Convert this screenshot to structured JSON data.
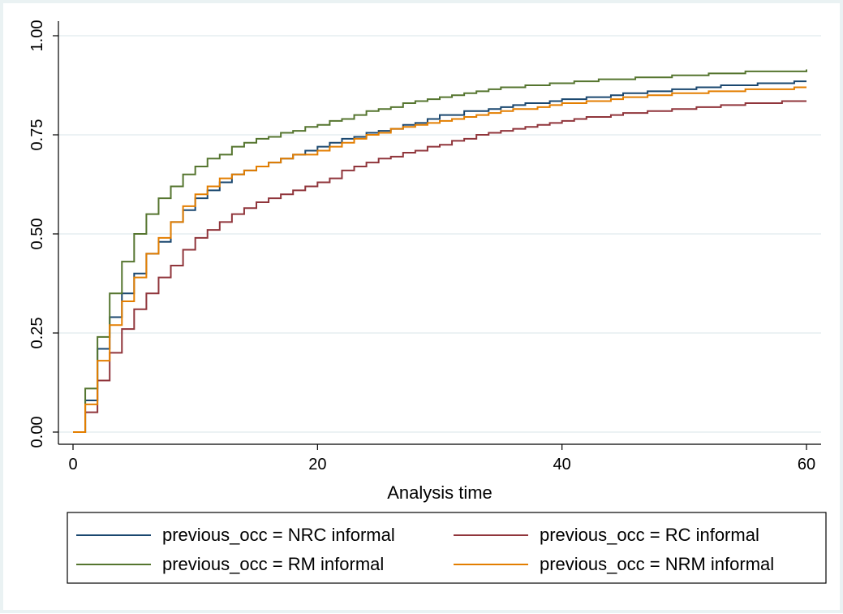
{
  "chart_data": {
    "type": "line",
    "title": "",
    "xlabel": "Analysis time",
    "ylabel": "",
    "xlim": [
      0,
      60
    ],
    "ylim": [
      0,
      1
    ],
    "xticks": [
      "0",
      "20",
      "40",
      "60"
    ],
    "yticks": [
      "0.00",
      "0.25",
      "0.50",
      "0.75",
      "1.00"
    ],
    "grid": true,
    "legend_position": "bottom",
    "series": [
      {
        "name": "previous_occ = NRC informal",
        "color": "#1a476f",
        "x": [
          0,
          1,
          2,
          3,
          4,
          5,
          6,
          7,
          8,
          9,
          10,
          11,
          12,
          13,
          14,
          15,
          16,
          17,
          18,
          19,
          20,
          21,
          22,
          23,
          24,
          25,
          26,
          27,
          28,
          29,
          30,
          31,
          32,
          33,
          34,
          35,
          36,
          37,
          38,
          39,
          40,
          41,
          42,
          43,
          44,
          45,
          46,
          47,
          48,
          49,
          50,
          51,
          52,
          53,
          54,
          55,
          56,
          57,
          58,
          59,
          60
        ],
        "y": [
          0.0,
          0.08,
          0.21,
          0.29,
          0.35,
          0.4,
          0.45,
          0.48,
          0.53,
          0.56,
          0.59,
          0.61,
          0.63,
          0.65,
          0.66,
          0.67,
          0.68,
          0.69,
          0.7,
          0.71,
          0.72,
          0.73,
          0.74,
          0.745,
          0.755,
          0.76,
          0.765,
          0.775,
          0.78,
          0.79,
          0.8,
          0.8,
          0.81,
          0.81,
          0.815,
          0.82,
          0.825,
          0.83,
          0.83,
          0.835,
          0.84,
          0.84,
          0.845,
          0.845,
          0.85,
          0.855,
          0.855,
          0.86,
          0.86,
          0.865,
          0.865,
          0.87,
          0.87,
          0.875,
          0.875,
          0.875,
          0.88,
          0.88,
          0.88,
          0.885,
          0.885
        ]
      },
      {
        "name": "previous_occ = RC informal",
        "color": "#90353b",
        "x": [
          0,
          1,
          2,
          3,
          4,
          5,
          6,
          7,
          8,
          9,
          10,
          11,
          12,
          13,
          14,
          15,
          16,
          17,
          18,
          19,
          20,
          21,
          22,
          23,
          24,
          25,
          26,
          27,
          28,
          29,
          30,
          31,
          32,
          33,
          34,
          35,
          36,
          37,
          38,
          39,
          40,
          41,
          42,
          43,
          44,
          45,
          46,
          47,
          48,
          49,
          50,
          51,
          52,
          53,
          54,
          55,
          56,
          57,
          58,
          59,
          60
        ],
        "y": [
          0.0,
          0.05,
          0.13,
          0.2,
          0.26,
          0.31,
          0.35,
          0.39,
          0.42,
          0.46,
          0.49,
          0.51,
          0.53,
          0.55,
          0.565,
          0.58,
          0.59,
          0.6,
          0.61,
          0.62,
          0.63,
          0.64,
          0.66,
          0.67,
          0.68,
          0.69,
          0.695,
          0.705,
          0.71,
          0.72,
          0.725,
          0.735,
          0.74,
          0.75,
          0.755,
          0.76,
          0.765,
          0.77,
          0.775,
          0.78,
          0.785,
          0.79,
          0.795,
          0.795,
          0.8,
          0.805,
          0.805,
          0.81,
          0.81,
          0.815,
          0.815,
          0.82,
          0.82,
          0.825,
          0.825,
          0.83,
          0.83,
          0.83,
          0.835,
          0.835,
          0.835
        ]
      },
      {
        "name": "previous_occ = RM informal",
        "color": "#55752f",
        "x": [
          0,
          1,
          2,
          3,
          4,
          5,
          6,
          7,
          8,
          9,
          10,
          11,
          12,
          13,
          14,
          15,
          16,
          17,
          18,
          19,
          20,
          21,
          22,
          23,
          24,
          25,
          26,
          27,
          28,
          29,
          30,
          31,
          32,
          33,
          34,
          35,
          36,
          37,
          38,
          39,
          40,
          41,
          42,
          43,
          44,
          45,
          46,
          47,
          48,
          49,
          50,
          51,
          52,
          53,
          54,
          55,
          56,
          57,
          58,
          59,
          60
        ],
        "y": [
          0.0,
          0.11,
          0.24,
          0.35,
          0.43,
          0.5,
          0.55,
          0.59,
          0.62,
          0.65,
          0.67,
          0.69,
          0.7,
          0.72,
          0.73,
          0.74,
          0.745,
          0.755,
          0.76,
          0.77,
          0.775,
          0.785,
          0.79,
          0.8,
          0.81,
          0.815,
          0.82,
          0.83,
          0.835,
          0.84,
          0.845,
          0.85,
          0.855,
          0.86,
          0.865,
          0.87,
          0.87,
          0.875,
          0.875,
          0.88,
          0.88,
          0.885,
          0.885,
          0.89,
          0.89,
          0.89,
          0.895,
          0.895,
          0.895,
          0.9,
          0.9,
          0.9,
          0.905,
          0.905,
          0.905,
          0.91,
          0.91,
          0.91,
          0.91,
          0.91,
          0.915
        ]
      },
      {
        "name": "previous_occ = NRM informal",
        "color": "#e37e00",
        "x": [
          0,
          1,
          2,
          3,
          4,
          5,
          6,
          7,
          8,
          9,
          10,
          11,
          12,
          13,
          14,
          15,
          16,
          17,
          18,
          19,
          20,
          21,
          22,
          23,
          24,
          25,
          26,
          27,
          28,
          29,
          30,
          31,
          32,
          33,
          34,
          35,
          36,
          37,
          38,
          39,
          40,
          41,
          42,
          43,
          44,
          45,
          46,
          47,
          48,
          49,
          50,
          51,
          52,
          53,
          54,
          55,
          56,
          57,
          58,
          59,
          60
        ],
        "y": [
          0.0,
          0.07,
          0.18,
          0.27,
          0.33,
          0.39,
          0.45,
          0.49,
          0.53,
          0.57,
          0.6,
          0.62,
          0.64,
          0.65,
          0.66,
          0.67,
          0.68,
          0.69,
          0.7,
          0.7,
          0.71,
          0.72,
          0.73,
          0.74,
          0.75,
          0.755,
          0.765,
          0.77,
          0.775,
          0.78,
          0.785,
          0.79,
          0.795,
          0.8,
          0.805,
          0.81,
          0.815,
          0.815,
          0.82,
          0.825,
          0.83,
          0.83,
          0.835,
          0.835,
          0.84,
          0.845,
          0.845,
          0.85,
          0.85,
          0.855,
          0.855,
          0.855,
          0.86,
          0.86,
          0.86,
          0.865,
          0.865,
          0.865,
          0.865,
          0.87,
          0.87
        ]
      }
    ]
  }
}
